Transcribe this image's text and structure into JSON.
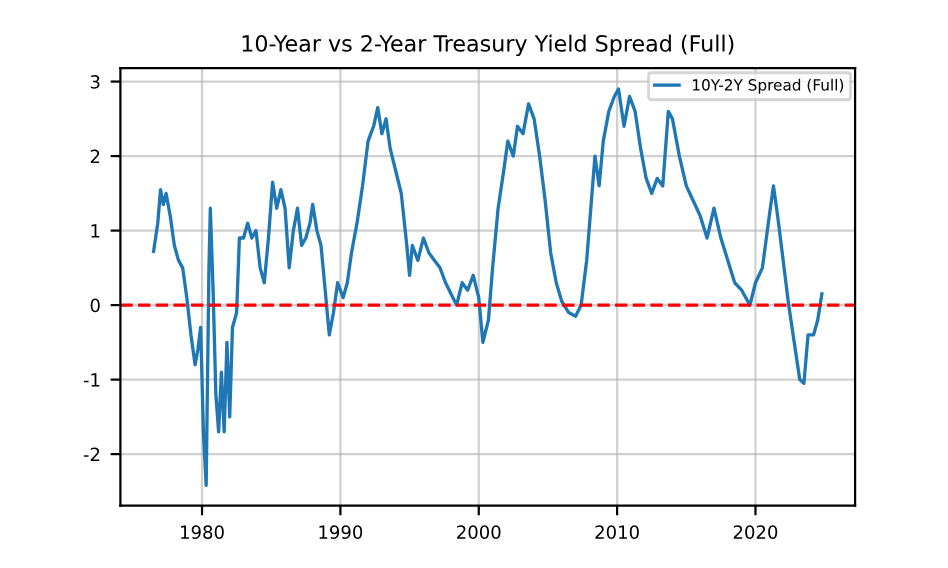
{
  "chart_data": {
    "type": "line",
    "title": "10-Year vs 2-Year Treasury Yield Spread (Full)",
    "series": [
      {
        "name": "10Y-2Y Spread (Full)",
        "color": "#1f77b4",
        "x": [
          1976.5,
          1976.8,
          1977.0,
          1977.2,
          1977.4,
          1977.7,
          1978.0,
          1978.3,
          1978.6,
          1978.9,
          1979.2,
          1979.5,
          1979.7,
          1979.9,
          1980.1,
          1980.3,
          1980.5,
          1980.6,
          1980.8,
          1981.0,
          1981.2,
          1981.4,
          1981.6,
          1981.8,
          1982.0,
          1982.2,
          1982.5,
          1982.7,
          1983.0,
          1983.3,
          1983.6,
          1983.9,
          1984.2,
          1984.5,
          1984.8,
          1985.1,
          1985.4,
          1985.7,
          1986.0,
          1986.3,
          1986.6,
          1986.9,
          1987.2,
          1987.5,
          1987.8,
          1988.0,
          1988.3,
          1988.6,
          1988.9,
          1989.2,
          1989.5,
          1989.8,
          1990.2,
          1990.5,
          1990.8,
          1991.2,
          1991.6,
          1992.0,
          1992.4,
          1992.7,
          1993.0,
          1993.3,
          1993.6,
          1994.0,
          1994.4,
          1994.8,
          1995.0,
          1995.2,
          1995.6,
          1996.0,
          1996.4,
          1996.8,
          1997.2,
          1997.6,
          1998.0,
          1998.4,
          1998.8,
          1999.2,
          1999.6,
          2000.0,
          2000.3,
          2000.7,
          2001.0,
          2001.4,
          2001.8,
          2002.1,
          2002.5,
          2002.8,
          2003.2,
          2003.6,
          2004.0,
          2004.4,
          2004.8,
          2005.2,
          2005.6,
          2006.0,
          2006.5,
          2007.0,
          2007.4,
          2007.8,
          2008.1,
          2008.4,
          2008.7,
          2009.0,
          2009.4,
          2009.8,
          2010.1,
          2010.5,
          2010.9,
          2011.3,
          2011.7,
          2012.1,
          2012.5,
          2012.9,
          2013.3,
          2013.7,
          2014.0,
          2014.5,
          2015.0,
          2015.5,
          2016.0,
          2016.5,
          2017.0,
          2017.5,
          2018.0,
          2018.5,
          2019.0,
          2019.6,
          2020.0,
          2020.5,
          2021.0,
          2021.3,
          2021.6,
          2022.0,
          2022.4,
          2022.8,
          2023.2,
          2023.5,
          2023.8,
          2024.2,
          2024.5,
          2024.8
        ],
        "values": [
          0.72,
          1.1,
          1.55,
          1.35,
          1.5,
          1.2,
          0.8,
          0.6,
          0.5,
          0.1,
          -0.4,
          -0.8,
          -0.6,
          -0.3,
          -1.7,
          -2.42,
          0.5,
          1.3,
          0.2,
          -1.2,
          -1.7,
          -0.9,
          -1.7,
          -0.5,
          -1.5,
          -0.3,
          -0.1,
          0.9,
          0.9,
          1.1,
          0.9,
          1.0,
          0.5,
          0.3,
          0.9,
          1.65,
          1.3,
          1.55,
          1.3,
          0.5,
          1.0,
          1.3,
          0.8,
          0.9,
          1.1,
          1.35,
          1.0,
          0.8,
          0.2,
          -0.4,
          -0.1,
          0.3,
          0.1,
          0.3,
          0.7,
          1.1,
          1.6,
          2.2,
          2.4,
          2.65,
          2.3,
          2.5,
          2.1,
          1.8,
          1.5,
          0.8,
          0.4,
          0.8,
          0.6,
          0.9,
          0.7,
          0.6,
          0.5,
          0.3,
          0.15,
          0.0,
          0.3,
          0.2,
          0.4,
          0.1,
          -0.5,
          -0.2,
          0.5,
          1.3,
          1.8,
          2.2,
          2.0,
          2.4,
          2.3,
          2.7,
          2.5,
          2.0,
          1.4,
          0.7,
          0.3,
          0.05,
          -0.1,
          -0.15,
          0.0,
          0.6,
          1.3,
          2.0,
          1.6,
          2.2,
          2.6,
          2.8,
          2.9,
          2.4,
          2.8,
          2.6,
          2.1,
          1.7,
          1.5,
          1.7,
          1.6,
          2.6,
          2.5,
          2.0,
          1.6,
          1.4,
          1.2,
          0.9,
          1.3,
          0.9,
          0.6,
          0.3,
          0.2,
          0.0,
          0.3,
          0.5,
          1.2,
          1.6,
          1.2,
          0.6,
          0.0,
          -0.5,
          -1.0,
          -1.05,
          -0.4,
          -0.4,
          -0.2,
          0.15
        ]
      }
    ],
    "xlim": [
      1974.1,
      2027.2
    ],
    "xticks": [
      1980,
      1990,
      2000,
      2010,
      2020
    ],
    "ylim": [
      -2.69,
      3.18
    ],
    "yticks": [
      -2,
      -1,
      0,
      1,
      2,
      3
    ],
    "ref_lines": [
      {
        "axis": "y",
        "value": 0,
        "color": "#ff0000",
        "line_style": "dashed"
      }
    ],
    "grid": true,
    "legend": "top right"
  }
}
